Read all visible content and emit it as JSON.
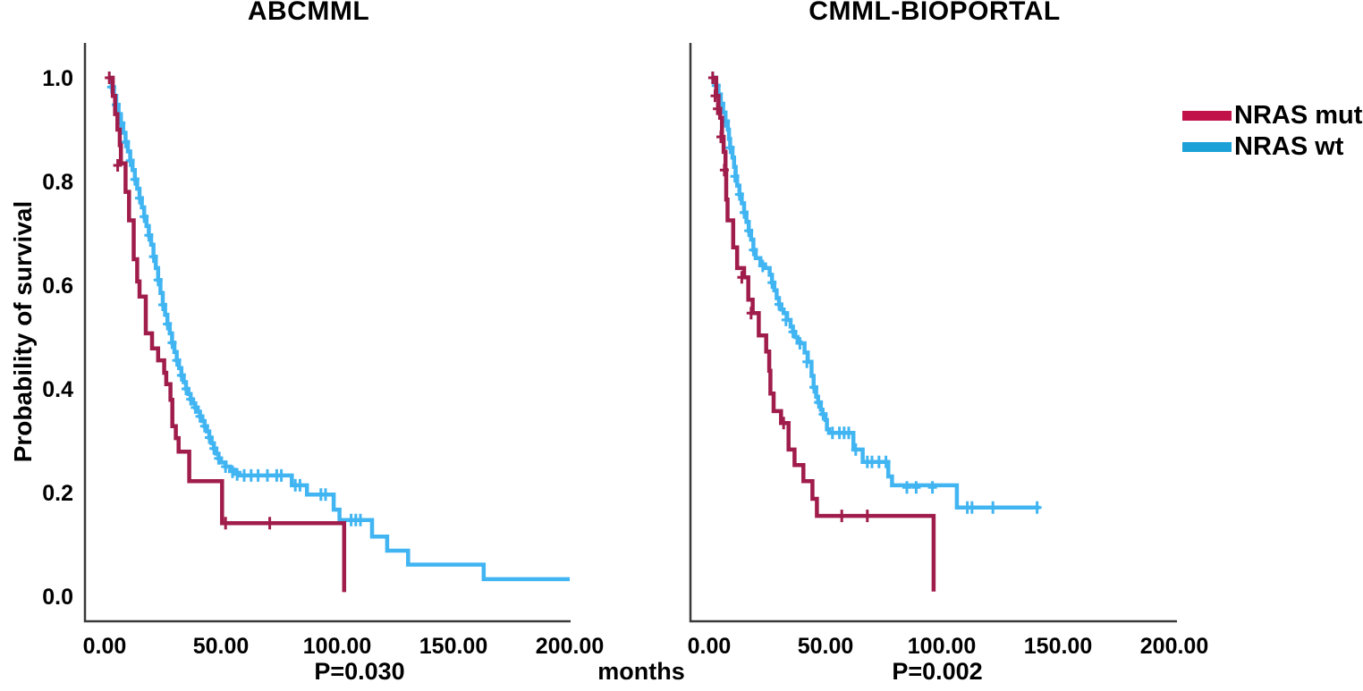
{
  "figure": {
    "y_axis_label": "Probability of survival",
    "x_axis_label": "months",
    "axis_color": "#3a3a3a",
    "legend": [
      {
        "label": "NRAS mut",
        "color": "#c11349"
      },
      {
        "label": "NRAS wt",
        "color": "#1ca0d8"
      }
    ]
  },
  "chart_data": [
    {
      "type": "line",
      "subtype": "kaplan-meier-step",
      "title": "ABCMML",
      "p_value_label": "P=0.030",
      "xlabel": "months",
      "ylabel": "Probability of survival",
      "xlim": [
        0,
        205
      ],
      "ylim": [
        0,
        1.07
      ],
      "grid": false,
      "legend_position": "right-outside",
      "x_ticks": [
        "0.00",
        "50.00",
        "100.00",
        "150.00",
        "200.00"
      ],
      "x_tick_values": [
        0,
        50,
        100,
        150,
        200
      ],
      "y_ticks": [
        "0.0",
        "0.2",
        "0.4",
        "0.6",
        "0.8",
        "1.0"
      ],
      "y_tick_values": [
        0,
        0.2,
        0.4,
        0.6,
        0.8,
        1.0
      ],
      "series": [
        {
          "name": "NRAS wt",
          "color": "#41b5f2",
          "points": [
            [
              2,
              1.0
            ],
            [
              3,
              0.982
            ],
            [
              4,
              0.965
            ],
            [
              5,
              0.948
            ],
            [
              6,
              0.93
            ],
            [
              7,
              0.912
            ],
            [
              8,
              0.894
            ],
            [
              9,
              0.876
            ],
            [
              10,
              0.858
            ],
            [
              11,
              0.84
            ],
            [
              12,
              0.822
            ],
            [
              13,
              0.804
            ],
            [
              14,
              0.786
            ],
            [
              15,
              0.768
            ],
            [
              16,
              0.75
            ],
            [
              17,
              0.732
            ],
            [
              18,
              0.714
            ],
            [
              19,
              0.696
            ],
            [
              20,
              0.678
            ],
            [
              21,
              0.655
            ],
            [
              22,
              0.633
            ],
            [
              23,
              0.61
            ],
            [
              24,
              0.585
            ],
            [
              25,
              0.562
            ],
            [
              26,
              0.543
            ],
            [
              27,
              0.525
            ],
            [
              28,
              0.507
            ],
            [
              29,
              0.489
            ],
            [
              30,
              0.471
            ],
            [
              31,
              0.455
            ],
            [
              32,
              0.44
            ],
            [
              33,
              0.426
            ],
            [
              34,
              0.413
            ],
            [
              35,
              0.4
            ],
            [
              36,
              0.39
            ],
            [
              37,
              0.38
            ],
            [
              38,
              0.372
            ],
            [
              39,
              0.364
            ],
            [
              40,
              0.356
            ],
            [
              41,
              0.347
            ],
            [
              42,
              0.338
            ],
            [
              43,
              0.328
            ],
            [
              44,
              0.318
            ],
            [
              45,
              0.306
            ],
            [
              46,
              0.295
            ],
            [
              47,
              0.285
            ],
            [
              48,
              0.275
            ],
            [
              49,
              0.266
            ],
            [
              50,
              0.258
            ],
            [
              52,
              0.25
            ],
            [
              54,
              0.244
            ],
            [
              56,
              0.238
            ],
            [
              58,
              0.233
            ],
            [
              80.5,
              0.214
            ],
            [
              87,
              0.196
            ],
            [
              98.5,
              0.167
            ],
            [
              101,
              0.147
            ],
            [
              115,
              0.115
            ],
            [
              121.5,
              0.088
            ],
            [
              130.5,
              0.061
            ],
            [
              163,
              0.033
            ],
            [
              200,
              0.033
            ]
          ],
          "censors": [
            [
              3,
              0.982
            ],
            [
              5,
              0.948
            ],
            [
              7,
              0.912
            ],
            [
              9,
              0.876
            ],
            [
              11,
              0.84
            ],
            [
              13,
              0.804
            ],
            [
              15,
              0.768
            ],
            [
              17,
              0.732
            ],
            [
              19,
              0.696
            ],
            [
              21,
              0.655
            ],
            [
              23,
              0.61
            ],
            [
              25,
              0.562
            ],
            [
              27,
              0.525
            ],
            [
              29,
              0.489
            ],
            [
              31,
              0.455
            ],
            [
              33,
              0.426
            ],
            [
              35,
              0.4
            ],
            [
              37,
              0.38
            ],
            [
              39,
              0.364
            ],
            [
              41,
              0.347
            ],
            [
              43,
              0.328
            ],
            [
              45,
              0.306
            ],
            [
              47,
              0.285
            ],
            [
              49,
              0.266
            ],
            [
              52,
              0.25
            ],
            [
              55,
              0.24
            ],
            [
              57,
              0.235
            ],
            [
              60,
              0.233
            ],
            [
              63,
              0.233
            ],
            [
              66,
              0.233
            ],
            [
              70,
              0.233
            ],
            [
              74,
              0.233
            ],
            [
              76,
              0.233
            ],
            [
              82,
              0.214
            ],
            [
              84,
              0.214
            ],
            [
              93,
              0.196
            ],
            [
              95,
              0.196
            ],
            [
              106,
              0.147
            ],
            [
              108,
              0.147
            ],
            [
              110,
              0.147
            ]
          ]
        },
        {
          "name": "NRAS mut",
          "color": "#a01c4b",
          "points": [
            [
              2,
              1.0
            ],
            [
              3.5,
              0.965
            ],
            [
              4.5,
              0.93
            ],
            [
              5.5,
              0.9
            ],
            [
              6.5,
              0.87
            ],
            [
              7,
              0.835
            ],
            [
              9,
              0.78
            ],
            [
              10.5,
              0.725
            ],
            [
              12.5,
              0.65
            ],
            [
              14,
              0.607
            ],
            [
              15,
              0.578
            ],
            [
              17.7,
              0.507
            ],
            [
              20.4,
              0.478
            ],
            [
              23,
              0.455
            ],
            [
              25.6,
              0.431
            ],
            [
              26.5,
              0.409
            ],
            [
              28.3,
              0.379
            ],
            [
              29.1,
              0.328
            ],
            [
              30.6,
              0.305
            ],
            [
              31.8,
              0.279
            ],
            [
              36.4,
              0.222
            ],
            [
              50.5,
              0.141
            ],
            [
              103,
              0.008
            ]
          ],
          "censors": [
            [
              2,
              1.0
            ],
            [
              5.6,
              0.831
            ],
            [
              52,
              0.141
            ],
            [
              71,
              0.141
            ]
          ]
        }
      ]
    },
    {
      "type": "line",
      "subtype": "kaplan-meier-step",
      "title": "CMML-BIOPORTAL",
      "p_value_label": "P=0.002",
      "xlabel": "months",
      "ylabel": "Probability of survival",
      "xlim": [
        0,
        205
      ],
      "ylim": [
        0,
        1.07
      ],
      "grid": false,
      "legend_position": "right-outside",
      "x_ticks": [
        "0.00",
        "50.00",
        "100.00",
        "150.00",
        "200.00"
      ],
      "x_tick_values": [
        0,
        50,
        100,
        150,
        200
      ],
      "y_ticks": [],
      "y_tick_values": [],
      "series": [
        {
          "name": "NRAS wt",
          "color": "#41b5f2",
          "points": [
            [
              1.5,
              1.0
            ],
            [
              3,
              0.985
            ],
            [
              4,
              0.968
            ],
            [
              5,
              0.95
            ],
            [
              6,
              0.933
            ],
            [
              7,
              0.916
            ],
            [
              8,
              0.9
            ],
            [
              8.5,
              0.882
            ],
            [
              9,
              0.865
            ],
            [
              10,
              0.846
            ],
            [
              10.7,
              0.828
            ],
            [
              11.4,
              0.81
            ],
            [
              12,
              0.792
            ],
            [
              13,
              0.775
            ],
            [
              14,
              0.758
            ],
            [
              15,
              0.74
            ],
            [
              16,
              0.722
            ],
            [
              17,
              0.705
            ],
            [
              18,
              0.688
            ],
            [
              19,
              0.668
            ],
            [
              20,
              0.652
            ],
            [
              22,
              0.64
            ],
            [
              24,
              0.633
            ],
            [
              26,
              0.62
            ],
            [
              27,
              0.605
            ],
            [
              28,
              0.59
            ],
            [
              29,
              0.575
            ],
            [
              30,
              0.563
            ],
            [
              31,
              0.553
            ],
            [
              32,
              0.546
            ],
            [
              33.5,
              0.533
            ],
            [
              35,
              0.52
            ],
            [
              36,
              0.51
            ],
            [
              37,
              0.5
            ],
            [
              38,
              0.49
            ],
            [
              39.2,
              0.488
            ],
            [
              41,
              0.47
            ],
            [
              42.4,
              0.452
            ],
            [
              44,
              0.425
            ],
            [
              44.9,
              0.403
            ],
            [
              46,
              0.385
            ],
            [
              46.8,
              0.374
            ],
            [
              48,
              0.36
            ],
            [
              48.7,
              0.351
            ],
            [
              50,
              0.34
            ],
            [
              50.6,
              0.322
            ],
            [
              51.5,
              0.315
            ],
            [
              62,
              0.283
            ],
            [
              66,
              0.259
            ],
            [
              77,
              0.231
            ],
            [
              78.6,
              0.214
            ],
            [
              106.5,
              0.171
            ],
            [
              142,
              0.171
            ]
          ],
          "censors": [
            [
              1.5,
              1.0
            ],
            [
              3,
              0.985
            ],
            [
              5,
              0.95
            ],
            [
              7,
              0.916
            ],
            [
              9,
              0.865
            ],
            [
              11,
              0.81
            ],
            [
              13,
              0.775
            ],
            [
              15,
              0.74
            ],
            [
              17,
              0.705
            ],
            [
              19,
              0.668
            ],
            [
              23,
              0.637
            ],
            [
              27,
              0.605
            ],
            [
              30,
              0.563
            ],
            [
              33,
              0.533
            ],
            [
              36,
              0.51
            ],
            [
              39,
              0.488
            ],
            [
              42,
              0.452
            ],
            [
              45,
              0.403
            ],
            [
              47,
              0.374
            ],
            [
              49,
              0.351
            ],
            [
              53,
              0.315
            ],
            [
              56,
              0.315
            ],
            [
              58,
              0.315
            ],
            [
              60,
              0.315
            ],
            [
              63,
              0.283
            ],
            [
              68,
              0.259
            ],
            [
              70,
              0.259
            ],
            [
              73,
              0.259
            ],
            [
              76,
              0.259
            ],
            [
              85,
              0.21
            ],
            [
              89,
              0.21
            ],
            [
              96,
              0.21
            ],
            [
              111,
              0.171
            ],
            [
              113,
              0.171
            ],
            [
              122,
              0.171
            ],
            [
              141,
              0.171
            ]
          ]
        },
        {
          "name": "NRAS mut",
          "color": "#a01c4b",
          "points": [
            [
              1.5,
              1.0
            ],
            [
              3,
              0.965
            ],
            [
              4,
              0.94
            ],
            [
              4.7,
              0.923
            ],
            [
              5.5,
              0.886
            ],
            [
              6.2,
              0.857
            ],
            [
              7,
              0.822
            ],
            [
              7.3,
              0.765
            ],
            [
              7.9,
              0.725
            ],
            [
              10.3,
              0.673
            ],
            [
              12,
              0.633
            ],
            [
              15,
              0.615
            ],
            [
              16.8,
              0.572
            ],
            [
              18.7,
              0.546
            ],
            [
              21.3,
              0.503
            ],
            [
              24.5,
              0.472
            ],
            [
              25.8,
              0.435
            ],
            [
              26.3,
              0.391
            ],
            [
              27.7,
              0.357
            ],
            [
              30.9,
              0.334
            ],
            [
              34.1,
              0.283
            ],
            [
              36.7,
              0.253
            ],
            [
              40.5,
              0.222
            ],
            [
              44.4,
              0.188
            ],
            [
              46.3,
              0.155
            ],
            [
              96.5,
              0.009
            ]
          ],
          "censors": [
            [
              1.5,
              1.0
            ],
            [
              2.5,
              0.965
            ],
            [
              3.5,
              0.94
            ],
            [
              5,
              0.886
            ],
            [
              6.5,
              0.822
            ],
            [
              14,
              0.615
            ],
            [
              18,
              0.546
            ],
            [
              32,
              0.334
            ],
            [
              57,
              0.155
            ],
            [
              68,
              0.155
            ]
          ]
        }
      ]
    }
  ]
}
